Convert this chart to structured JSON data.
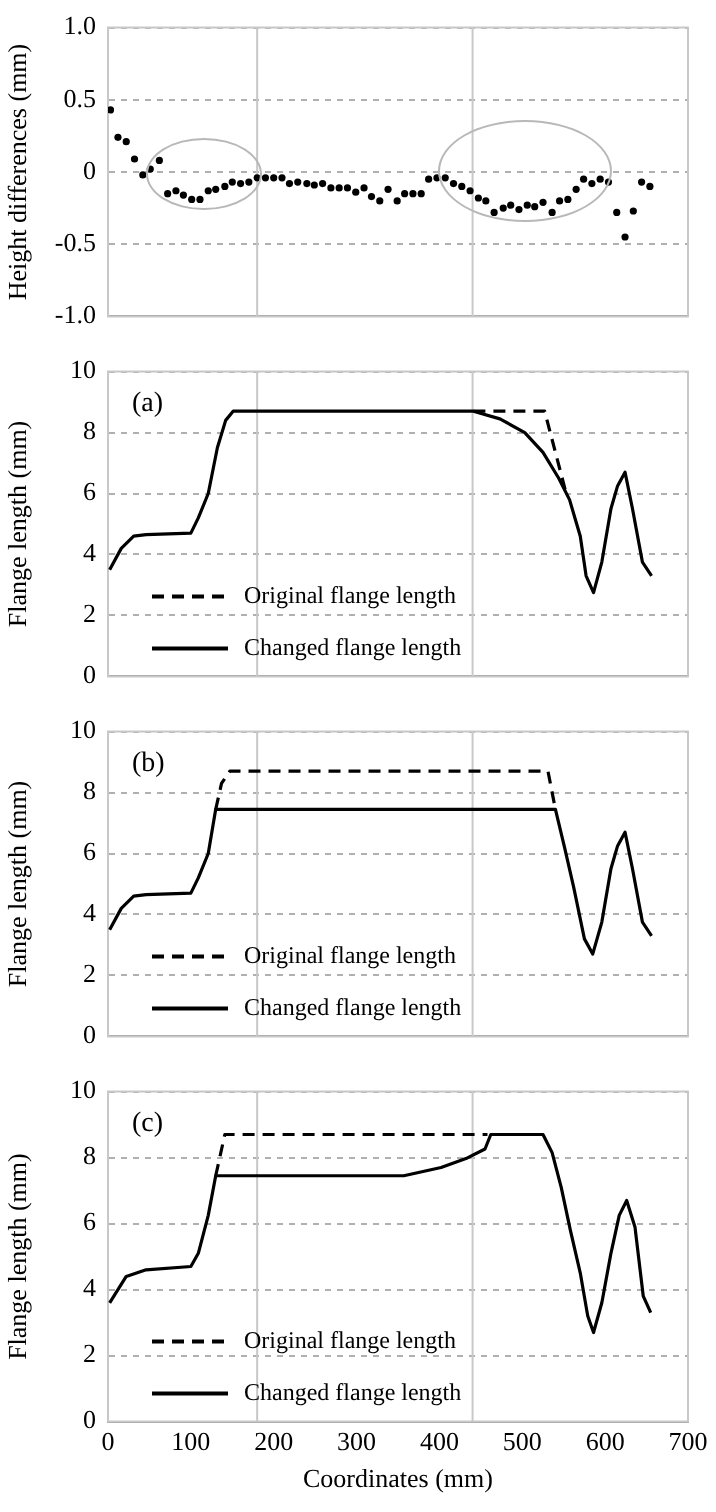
{
  "chart_data": [
    {
      "type": "scatter",
      "ylabel": "Height differences (mm)",
      "xlim": [
        0,
        700
      ],
      "ylim": [
        -1.0,
        1.0
      ],
      "yticks": [
        {
          "value": -1,
          "label": "-1.0"
        },
        -0.5,
        0,
        0.5,
        {
          "value": 1,
          "label": "1.0"
        }
      ],
      "grid": "y",
      "tick_labels": "y",
      "marker": "circle",
      "ref_lines": [
        {
          "axis": "x",
          "value": 180,
          "color": "#c8c8c8"
        },
        {
          "axis": "x",
          "value": 440,
          "color": "#c8c8c8"
        }
      ],
      "series": [
        {
          "color": "#000000",
          "x": [
            3,
            12,
            22,
            32,
            42,
            51,
            62,
            72,
            82,
            91,
            101,
            111,
            121,
            130,
            141,
            150,
            160,
            170,
            180,
            190,
            200,
            210,
            219,
            229,
            240,
            249,
            259,
            269,
            279,
            289,
            299,
            309,
            318,
            328,
            338,
            349,
            358,
            368,
            378,
            387,
            397,
            407,
            417,
            427,
            437,
            447,
            456,
            466,
            477,
            486,
            496,
            506,
            515,
            525,
            536,
            545,
            555,
            565,
            574,
            584,
            594,
            604,
            614,
            624,
            634,
            644,
            654
          ],
          "values": [
            0.43,
            0.24,
            0.21,
            0.09,
            -0.02,
            0.02,
            0.08,
            -0.15,
            -0.13,
            -0.16,
            -0.19,
            -0.19,
            -0.13,
            -0.12,
            -0.1,
            -0.07,
            -0.08,
            -0.07,
            -0.04,
            -0.04,
            -0.04,
            -0.04,
            -0.08,
            -0.07,
            -0.08,
            -0.09,
            -0.08,
            -0.11,
            -0.11,
            -0.11,
            -0.14,
            -0.11,
            -0.17,
            -0.2,
            -0.12,
            -0.2,
            -0.15,
            -0.15,
            -0.15,
            -0.05,
            -0.04,
            -0.04,
            -0.08,
            -0.1,
            -0.13,
            -0.18,
            -0.2,
            -0.28,
            -0.25,
            -0.23,
            -0.26,
            -0.23,
            -0.24,
            -0.21,
            -0.28,
            -0.2,
            -0.19,
            -0.12,
            -0.05,
            -0.08,
            -0.05,
            -0.07,
            -0.28,
            -0.45,
            -0.27,
            -0.07,
            -0.1
          ]
        }
      ]
    },
    {
      "type": "line",
      "ylabel": "Flange length (mm)",
      "xlim": [
        0,
        700
      ],
      "ylim": [
        0,
        10
      ],
      "yticks": [
        0,
        2,
        4,
        6,
        8,
        10
      ],
      "grid": "y",
      "tick_labels": "y",
      "marker": "none",
      "legend": "bottom left",
      "annotations": [
        "(a)"
      ],
      "ref_lines": [
        {
          "axis": "x",
          "value": 180,
          "color": "#c8c8c8"
        },
        {
          "axis": "x",
          "value": 440,
          "color": "#c8c8c8"
        }
      ],
      "series": [
        {
          "name": "Original flange length",
          "color": "#000000",
          "line_style": "dashed",
          "x": [
            441,
            527,
            553
          ],
          "values": [
            8.7,
            8.7,
            6.0
          ]
        },
        {
          "name": "Changed flange length",
          "color": "#000000",
          "line_style": "solid",
          "x": [
            2,
            16,
            31,
            46,
            100,
            109,
            121,
            132,
            142,
            151,
            441,
            473,
            503,
            525,
            544,
            557,
            570,
            577,
            586,
            596,
            607,
            615,
            624,
            633,
            645,
            656
          ],
          "values": [
            3.5,
            4.2,
            4.6,
            4.65,
            4.7,
            5.2,
            6.0,
            7.5,
            8.4,
            8.7,
            8.7,
            8.45,
            8.0,
            7.35,
            6.5,
            5.8,
            4.6,
            3.3,
            2.75,
            3.75,
            5.5,
            6.25,
            6.7,
            5.5,
            3.75,
            3.3
          ]
        }
      ]
    },
    {
      "type": "line",
      "ylabel": "Flange length (mm)",
      "xlim": [
        0,
        700
      ],
      "ylim": [
        0,
        10
      ],
      "yticks": [
        0,
        2,
        4,
        6,
        8,
        10
      ],
      "grid": "y",
      "tick_labels": "y",
      "marker": "none",
      "legend": "bottom left",
      "annotations": [
        "(b)"
      ],
      "ref_lines": [
        {
          "axis": "x",
          "value": 180,
          "color": "#c8c8c8"
        },
        {
          "axis": "x",
          "value": 440,
          "color": "#c8c8c8"
        }
      ],
      "series": [
        {
          "name": "Original flange length",
          "color": "#000000",
          "line_style": "dashed",
          "x": [
            130,
            137,
            147,
            531,
            540
          ],
          "values": [
            7.45,
            8.3,
            8.7,
            8.7,
            7.45
          ]
        },
        {
          "name": "Changed flange length",
          "color": "#000000",
          "line_style": "solid",
          "x": [
            2,
            16,
            31,
            46,
            100,
            109,
            121,
            130,
            540,
            551,
            562,
            575,
            585,
            596,
            607,
            615,
            624,
            633,
            645,
            656
          ],
          "values": [
            3.5,
            4.2,
            4.6,
            4.65,
            4.7,
            5.2,
            6.0,
            7.45,
            7.45,
            6.2,
            4.9,
            3.2,
            2.7,
            3.75,
            5.5,
            6.25,
            6.7,
            5.5,
            3.75,
            3.3
          ]
        }
      ]
    },
    {
      "type": "line",
      "xlabel": "Coordinates (mm)",
      "ylabel": "Flange length (mm)",
      "xlim": [
        0,
        700
      ],
      "ylim": [
        0,
        10
      ],
      "xticks": [
        0,
        100,
        200,
        300,
        400,
        500,
        600,
        700
      ],
      "yticks": [
        0,
        2,
        4,
        6,
        8,
        10
      ],
      "grid": "y",
      "marker": "none",
      "legend": "bottom left",
      "annotations": [
        "(c)"
      ],
      "ref_lines": [
        {
          "axis": "x",
          "value": 180,
          "color": "#c8c8c8"
        },
        {
          "axis": "x",
          "value": 440,
          "color": "#c8c8c8"
        }
      ],
      "series": [
        {
          "name": "Original flange length",
          "color": "#000000",
          "line_style": "dashed",
          "x": [
            130,
            141,
            458
          ],
          "values": [
            7.45,
            8.7,
            8.7
          ]
        },
        {
          "name": "Changed flange length",
          "color": "#000000",
          "line_style": "solid",
          "x": [
            2,
            22,
            46,
            100,
            109,
            121,
            130,
            357,
            402,
            432,
            455,
            462,
            525,
            536,
            547,
            558,
            570,
            579,
            586,
            596,
            607,
            617,
            626,
            636,
            646,
            655
          ],
          "values": [
            3.6,
            4.4,
            4.6,
            4.7,
            5.1,
            6.25,
            7.45,
            7.45,
            7.7,
            7.97,
            8.26,
            8.7,
            8.7,
            8.15,
            7.1,
            5.8,
            4.5,
            3.2,
            2.7,
            3.6,
            5.1,
            6.25,
            6.7,
            5.9,
            3.8,
            3.3
          ]
        }
      ]
    }
  ]
}
